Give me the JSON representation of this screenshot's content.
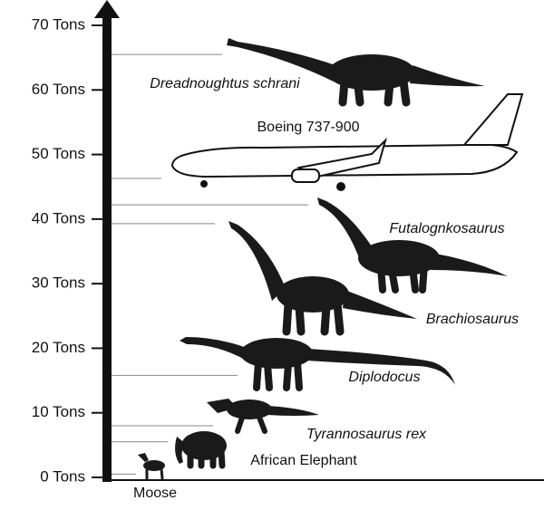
{
  "chart_data": {
    "type": "pictograph",
    "ylim": [
      0,
      70
    ],
    "yticks": [
      {
        "value": 0,
        "label": "0 Tons"
      },
      {
        "value": 10,
        "label": "10 Tons"
      },
      {
        "value": 20,
        "label": "20 Tons"
      },
      {
        "value": 30,
        "label": "30 Tons"
      },
      {
        "value": 40,
        "label": "40 Tons"
      },
      {
        "value": 50,
        "label": "50 Tons"
      },
      {
        "value": 60,
        "label": "60 Tons"
      },
      {
        "value": 70,
        "label": "70 Tons"
      }
    ],
    "items": [
      {
        "name": "Dreadnoughtus schrani",
        "value": 65.5
      },
      {
        "name": "Boeing 737-900",
        "value": 46.3
      },
      {
        "name": "Futalognkosaurus",
        "value": 42.2
      },
      {
        "name": "Brachiosaurus",
        "value": 39.3
      },
      {
        "name": "Diplodocus",
        "value": 15.8
      },
      {
        "name": "Tyrannosaurus rex",
        "value": 8.0
      },
      {
        "name": "African Elephant",
        "value": 5.5
      },
      {
        "name": "Moose",
        "value": 0.5
      }
    ]
  }
}
